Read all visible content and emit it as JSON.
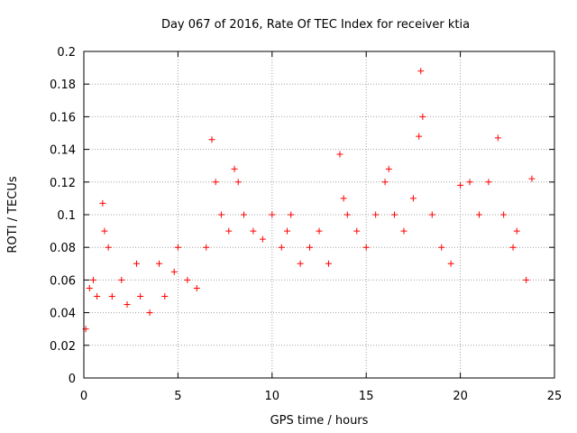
{
  "chart_data": {
    "type": "scatter",
    "title": "Day 067 of 2016, Rate Of TEC Index for receiver ktia",
    "xlabel": "GPS time / hours",
    "ylabel": "ROTI / TECUs",
    "xlim": [
      0,
      25
    ],
    "ylim": [
      0,
      0.2
    ],
    "xticks": [
      "0",
      "5",
      "10",
      "15",
      "20",
      "25"
    ],
    "yticks": [
      "0",
      "0.02",
      "0.04",
      "0.06",
      "0.08",
      "0.1",
      "0.12",
      "0.14",
      "0.16",
      "0.18",
      "0.2"
    ],
    "grid": true,
    "marker": "plus",
    "color": "#ff0000",
    "series": [
      {
        "x": [
          0.1,
          0.3,
          0.5,
          0.7,
          1.0,
          1.1,
          1.3,
          1.5,
          2.0,
          2.3,
          2.8,
          3.0,
          3.5,
          4.0,
          4.3,
          4.8,
          5.0,
          5.5,
          6.0,
          6.5,
          6.8,
          7.0,
          7.3,
          7.7,
          8.0,
          8.2,
          8.5,
          9.0,
          9.5,
          10.0,
          10.5,
          10.8,
          11.0,
          11.5,
          12.0,
          12.5,
          13.0,
          13.6,
          13.8,
          14.0,
          14.5,
          15.0,
          15.5,
          16.0,
          16.2,
          16.5,
          17.0,
          17.5,
          17.8,
          17.9,
          18.0,
          18.5,
          19.0,
          19.5,
          20.0,
          20.5,
          21.0,
          21.5,
          22.0,
          22.3,
          22.8,
          23.0,
          23.5,
          23.8
        ],
        "y": [
          0.03,
          0.055,
          0.06,
          0.05,
          0.107,
          0.09,
          0.08,
          0.05,
          0.06,
          0.045,
          0.07,
          0.05,
          0.04,
          0.07,
          0.05,
          0.065,
          0.08,
          0.06,
          0.055,
          0.08,
          0.146,
          0.12,
          0.1,
          0.09,
          0.128,
          0.12,
          0.1,
          0.09,
          0.085,
          0.1,
          0.08,
          0.09,
          0.1,
          0.07,
          0.08,
          0.09,
          0.07,
          0.137,
          0.11,
          0.1,
          0.09,
          0.08,
          0.1,
          0.12,
          0.128,
          0.1,
          0.09,
          0.11,
          0.148,
          0.188,
          0.16,
          0.1,
          0.08,
          0.07,
          0.118,
          0.12,
          0.1,
          0.12,
          0.147,
          0.1,
          0.08,
          0.09,
          0.06,
          0.122
        ]
      }
    ]
  }
}
